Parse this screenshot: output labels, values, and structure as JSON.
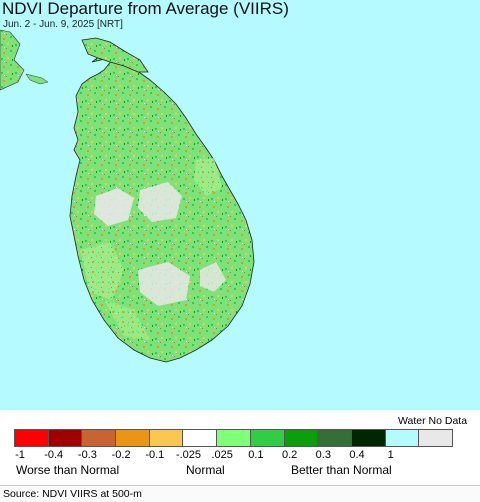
{
  "map": {
    "title": "NDVI Departure from Average (VIIRS)",
    "subtitle": "Jun. 2 - Jun. 9, 2025 [NRT]",
    "ocean_color": "#b4fafe",
    "land_color": "#7de27a",
    "no_data_color": "#e8e8e8"
  },
  "legend": {
    "water_label": "Water No Data",
    "swatch_colors": [
      "#ff0000",
      "#a00000",
      "#c86432",
      "#e89614",
      "#fac850",
      "#ffffff",
      "#80ff78",
      "#32cd46",
      "#0ba00b",
      "#366e36",
      "#002800",
      "#b4fafe",
      "#e8e8e8"
    ],
    "tick_labels": [
      "-1",
      "-0.4",
      "-0.3",
      "-0.2",
      "-0.1",
      "-.025",
      ".025",
      "0.1",
      "0.2",
      "0.3",
      "0.4",
      "1"
    ],
    "category_worse": "Worse than Normal",
    "category_normal": "Normal",
    "category_better": "Better than Normal"
  },
  "footer": {
    "source": "Source: NDVI VIIRS at 500-m"
  }
}
